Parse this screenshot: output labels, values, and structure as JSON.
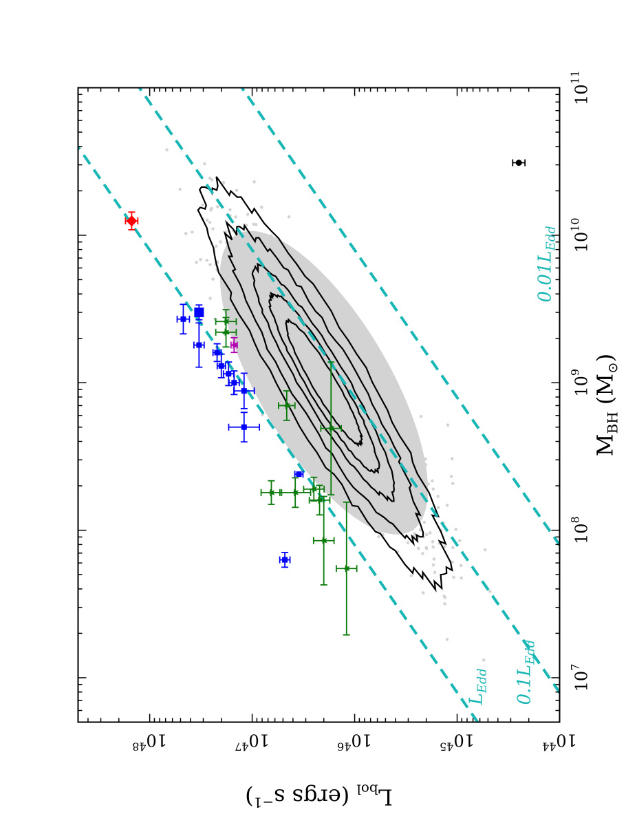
{
  "chart_data": {
    "type": "scatter",
    "title": "",
    "xlabel": "M_BH (M_⊙)",
    "ylabel": "L_bol (ergs s^-1)",
    "x_scale": "log",
    "y_scale": "log",
    "xlim": [
      5000000.0,
      100000000000.0
    ],
    "ylim": [
      1e+44,
      5e+48
    ],
    "x_ticks": [
      {
        "value": 10000000.0,
        "base": "10",
        "exp": "7"
      },
      {
        "value": 100000000.0,
        "base": "10",
        "exp": "8"
      },
      {
        "value": 1000000000.0,
        "base": "10",
        "exp": "9"
      },
      {
        "value": 10000000000.0,
        "base": "10",
        "exp": "10"
      },
      {
        "value": 100000000000.0,
        "base": "10",
        "exp": "11"
      }
    ],
    "y_ticks": [
      {
        "value": 1e+44,
        "base": "10",
        "exp": "44"
      },
      {
        "value": 1e+45,
        "base": "10",
        "exp": "45"
      },
      {
        "value": 1e+46,
        "base": "10",
        "exp": "46"
      },
      {
        "value": 1e+47,
        "base": "10",
        "exp": "47"
      },
      {
        "value": 1e+48,
        "base": "10",
        "exp": "48"
      }
    ],
    "grid": false,
    "eddington_lines": [
      {
        "label": "L_Edd",
        "label_main": "L",
        "label_sub": "Edd",
        "fraction": 1.0,
        "color": "#19b6b6",
        "style": "dashed"
      },
      {
        "label": "0.1L_Edd",
        "label_main": "0.1L",
        "label_sub": "Edd",
        "fraction": 0.1,
        "color": "#19b6b6",
        "style": "dashed"
      },
      {
        "label": "0.01L_Edd",
        "label_main": "0.01L",
        "label_sub": "Edd",
        "fraction": 0.01,
        "color": "#19b6b6",
        "style": "dashed"
      }
    ],
    "background_cloud": {
      "color": "#d3d3d3",
      "description_points": "dense gray scatter of quasar sample",
      "center_logM": 9.0,
      "center_logL": 46.3,
      "n_points": 1400
    },
    "contours": {
      "color": "#000000",
      "levels": [
        {
          "halfwidth_logM": 1.35,
          "halfwidth_scatter": 0.55
        },
        {
          "halfwidth_logM": 1.05,
          "halfwidth_scatter": 0.42
        },
        {
          "halfwidth_logM": 0.78,
          "halfwidth_scatter": 0.3
        },
        {
          "halfwidth_logM": 0.6,
          "halfwidth_scatter": 0.22
        },
        {
          "halfwidth_logM": 0.42,
          "halfwidth_scatter": 0.15
        }
      ]
    },
    "series": [
      {
        "color": "#0000ff",
        "marker": "square",
        "points": [
          {
            "x": 63000000.0,
            "y": 4.8e+46,
            "xerr_dex": 0.05,
            "yerr_dex": 0.05
          },
          {
            "x": 240000000.0,
            "y": 3.5e+46,
            "xerr_dex": 0.0,
            "yerr_dex": 0.04
          },
          {
            "x": 500000000.0,
            "y": 1.2e+47,
            "xerr_dex": 0.1,
            "yerr_dex": 0.15
          },
          {
            "x": 880000000.0,
            "y": 1.2e+47,
            "xerr_dex": 0.12,
            "yerr_dex": 0.1
          },
          {
            "x": 1000000000.0,
            "y": 1.5e+47,
            "xerr_dex": 0.08,
            "yerr_dex": 0.05
          },
          {
            "x": 1150000000.0,
            "y": 1.7e+47,
            "xerr_dex": 0.08,
            "yerr_dex": 0.05
          },
          {
            "x": 1300000000.0,
            "y": 2e+47,
            "xerr_dex": 0.08,
            "yerr_dex": 0.04
          },
          {
            "x": 1600000000.0,
            "y": 2.2e+47,
            "xerr_dex": 0.06,
            "yerr_dex": 0.04
          },
          {
            "x": 1800000000.0,
            "y": 3.3e+47,
            "xerr_dex": 0.15,
            "yerr_dex": 0.05
          },
          {
            "x": 2700000000.0,
            "y": 4.7e+47,
            "xerr_dex": 0.1,
            "yerr_dex": 0.06
          },
          {
            "x": 3000000000.0,
            "y": 3.3e+47,
            "xerr_dex": 0.05,
            "yerr_dex": 0.03,
            "big": true
          }
        ]
      },
      {
        "color": "#0a7a0a",
        "marker": "star",
        "points": [
          {
            "x": 55000000.0,
            "y": 1.2e+46,
            "xerr_dex": 0.45,
            "yerr_dex": 0.1
          },
          {
            "x": 85000000.0,
            "y": 2e+46,
            "xerr_dex": 0.3,
            "yerr_dex": 0.1
          },
          {
            "x": 160000000.0,
            "y": 2.2e+46,
            "xerr_dex": 0.1,
            "yerr_dex": 0.1
          },
          {
            "x": 180000000.0,
            "y": 3.8e+46,
            "xerr_dex": 0.1,
            "yerr_dex": 0.15
          },
          {
            "x": 180000000.0,
            "y": 6.5e+46,
            "xerr_dex": 0.08,
            "yerr_dex": 0.1
          },
          {
            "x": 190000000.0,
            "y": 2.5e+46,
            "xerr_dex": 0.08,
            "yerr_dex": 0.1
          },
          {
            "x": 490000000.0,
            "y": 1.7e+46,
            "xerr_dex": 0.45,
            "yerr_dex": 0.1
          },
          {
            "x": 700000000.0,
            "y": 4.6e+46,
            "xerr_dex": 0.1,
            "yerr_dex": 0.08
          },
          {
            "x": 2200000000.0,
            "y": 1.8e+47,
            "xerr_dex": 0.1,
            "yerr_dex": 0.1
          },
          {
            "x": 2600000000.0,
            "y": 1.8e+47,
            "xerr_dex": 0.08,
            "yerr_dex": 0.1
          }
        ]
      },
      {
        "color": "#b000b0",
        "marker": "star",
        "points": [
          {
            "x": 1800000000.0,
            "y": 1.5e+47,
            "xerr_dex": 0.05,
            "yerr_dex": 0.03
          }
        ]
      },
      {
        "color": "#ff0000",
        "marker": "diamond",
        "points": [
          {
            "x": 12500000000.0,
            "y": 1.5e+48,
            "xerr_dex": 0.06,
            "yerr_dex": 0.06
          }
        ]
      },
      {
        "color": "#000000",
        "marker": "circle",
        "points": [
          {
            "x": 31000000000.0,
            "y": 2.5e+44,
            "xerr_dex": 0.0,
            "yerr_dex": 0.06
          }
        ]
      }
    ]
  }
}
